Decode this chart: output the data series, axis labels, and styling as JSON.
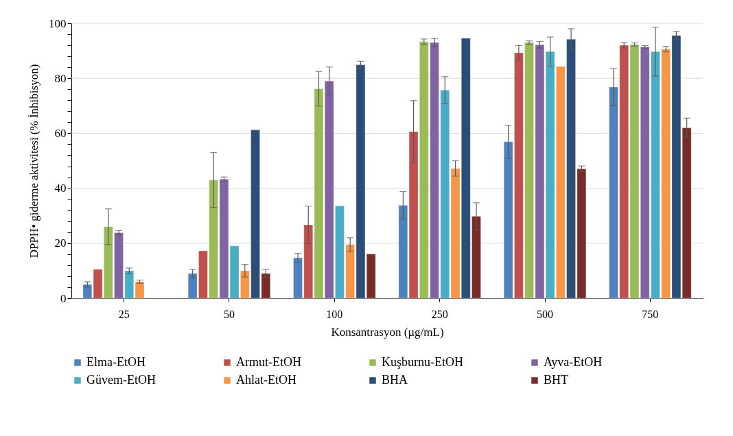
{
  "chart_data": {
    "type": "bar",
    "xlabel": "Konsantrasyon (µg/mL)",
    "ylabel": "DPPH• giderme aktivitesi (% İnhibisyon)",
    "categories": [
      "25",
      "50",
      "100",
      "250",
      "500",
      "750"
    ],
    "series": [
      {
        "name": "Elma-EtOH",
        "color": "#4f81bd",
        "values": [
          5,
          9,
          14.7,
          33.8,
          56.9,
          76.8
        ],
        "errors": [
          1,
          1.5,
          1.6,
          5,
          6,
          6.7
        ]
      },
      {
        "name": "Armut-EtOH",
        "color": "#c0504d",
        "values": [
          10.5,
          17.2,
          26.7,
          60.6,
          89.3,
          92
        ],
        "errors": [
          null,
          null,
          6.8,
          11.3,
          2.6,
          1
        ]
      },
      {
        "name": "Kuşburnu-EtOH",
        "color": "#9bbb59",
        "values": [
          26,
          43,
          76.2,
          93.3,
          93,
          92.3
        ],
        "errors": [
          6.5,
          10,
          6.3,
          1,
          0.6,
          0.6
        ]
      },
      {
        "name": "Ayva-EtOH",
        "color": "#8064a2",
        "values": [
          23.8,
          43.3,
          79,
          93,
          92.2,
          91.4
        ],
        "errors": [
          0.8,
          0.8,
          5.1,
          1.4,
          1.2,
          0.5
        ]
      },
      {
        "name": "Güvem-EtOH",
        "color": "#4bacc6",
        "values": [
          10,
          19,
          33.6,
          75.7,
          89.7,
          89.7
        ],
        "errors": [
          1,
          null,
          null,
          4.9,
          5.3,
          8.9
        ]
      },
      {
        "name": "Ahlat-EtOH",
        "color": "#f79646",
        "values": [
          6,
          10,
          19.5,
          47.2,
          84.3,
          90.6
        ],
        "errors": [
          0.6,
          2.3,
          2.5,
          2.8,
          null,
          1
        ]
      },
      {
        "name": "BHA",
        "color": "#2c4d75",
        "values": [
          null,
          61.2,
          84.9,
          94.6,
          94.2,
          95.6
        ],
        "errors": [
          null,
          null,
          1.3,
          null,
          3.8,
          1.5
        ]
      },
      {
        "name": "BHT",
        "color": "#772c2a",
        "values": [
          null,
          9,
          16.1,
          29.8,
          47.1,
          62
        ],
        "errors": [
          null,
          1.5,
          null,
          4.9,
          1,
          3.5
        ]
      }
    ],
    "ylim": [
      0,
      100
    ],
    "yticks": [
      0,
      {
        "value": 4,
        "label": null
      },
      {
        "value": 8,
        "label": null
      },
      {
        "value": 12,
        "label": null
      },
      {
        "value": 16,
        "label": null
      },
      20,
      {
        "value": 24,
        "label": null
      },
      {
        "value": 28,
        "label": null
      },
      {
        "value": 32,
        "label": null
      },
      {
        "value": 36,
        "label": null
      },
      40,
      {
        "value": 44,
        "label": null
      },
      {
        "value": 48,
        "label": null
      },
      {
        "value": 52,
        "label": null
      },
      {
        "value": 56,
        "label": null
      },
      60,
      {
        "value": 64,
        "label": null
      },
      {
        "value": 68,
        "label": null
      },
      {
        "value": 72,
        "label": null
      },
      {
        "value": 76,
        "label": null
      },
      80,
      {
        "value": 84,
        "label": null
      },
      {
        "value": 88,
        "label": null
      },
      {
        "value": 92,
        "label": null
      },
      {
        "value": 96,
        "label": null
      },
      100
    ],
    "grid": "y",
    "legend": "bottom"
  }
}
